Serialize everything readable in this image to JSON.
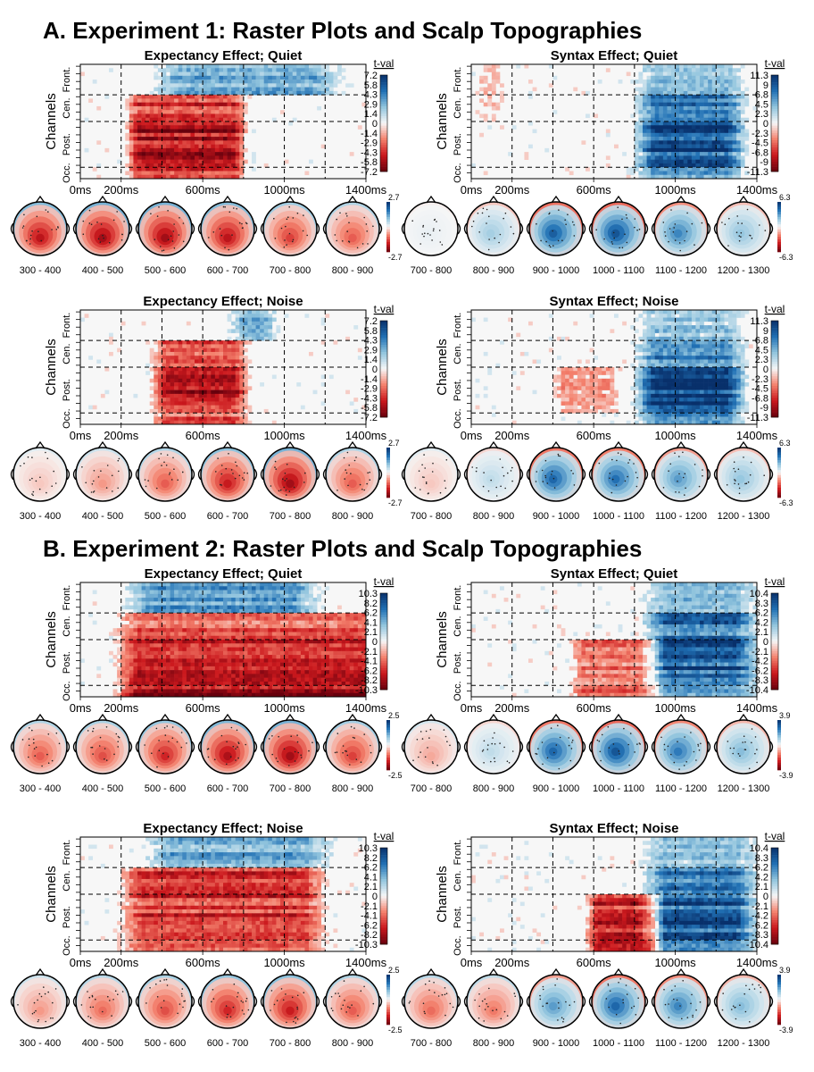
{
  "figure": {
    "sections": [
      {
        "title": "A. Experiment 1: Raster Plots and Scalp Topographies"
      },
      {
        "title": "B. Experiment 2: Raster Plots and Scalp Topographies"
      }
    ],
    "y_axis_label": "Channels",
    "channel_groups": [
      "Front.",
      "Cen.",
      "Post.",
      "Occ."
    ],
    "x_tick_labels": [
      "0ms",
      "200ms",
      "600ms",
      "1000ms",
      "1400ms"
    ],
    "colorbar_title": "t-val"
  },
  "chart_data": [
    {
      "type": "heatmap",
      "experiment": 1,
      "title": "Expectancy Effect; Quiet",
      "xlabel": "",
      "ylabel": "Channels",
      "xlim_ms": [
        0,
        1400
      ],
      "x_ticks_ms": [
        0,
        200,
        600,
        1000,
        1400
      ],
      "colorbar_ticks": [
        "7.2",
        "5.8",
        "4.3",
        "2.9",
        "1.4",
        "0",
        "-1.4",
        "-2.9",
        "-4.3",
        "-5.8",
        "-7.2"
      ],
      "topographies": {
        "windows": [
          "300 - 400",
          "400 - 500",
          "500 - 600",
          "600 - 700",
          "700 - 800",
          "800 - 900"
        ],
        "colorbar_max": "2.7",
        "colorbar_min": "-2.7",
        "peak_t": [
          -0.8,
          -0.9,
          -0.9,
          -0.8,
          -0.6,
          -0.5
        ]
      }
    },
    {
      "type": "heatmap",
      "experiment": 1,
      "title": "Syntax Effect; Quiet",
      "xlabel": "",
      "ylabel": "Channels",
      "xlim_ms": [
        0,
        1400
      ],
      "x_ticks_ms": [
        0,
        200,
        600,
        1000,
        1400
      ],
      "colorbar_ticks": [
        "11.3",
        "9",
        "6.8",
        "4.5",
        "2.3",
        "0",
        "-2.3",
        "-4.5",
        "-6.8",
        "-9",
        "-11.3"
      ],
      "topographies": {
        "windows": [
          "700 - 800",
          "800 - 900",
          "900 - 1000",
          "1000 - 1100",
          "1100 - 1200",
          "1200 - 1300"
        ],
        "colorbar_max": "6.3",
        "colorbar_min": "-6.3",
        "peak_t": [
          0.05,
          0.3,
          0.85,
          0.9,
          0.65,
          0.35
        ]
      }
    },
    {
      "type": "heatmap",
      "experiment": 1,
      "title": "Expectancy Effect; Noise",
      "xlabel": "",
      "ylabel": "Channels",
      "xlim_ms": [
        0,
        1400
      ],
      "x_ticks_ms": [
        0,
        200,
        600,
        1000,
        1400
      ],
      "colorbar_ticks": [
        "7.2",
        "5.8",
        "4.3",
        "2.9",
        "1.4",
        "0",
        "-1.4",
        "-2.9",
        "-4.3",
        "-5.8",
        "-7.2"
      ],
      "topographies": {
        "windows": [
          "300 - 400",
          "400 - 500",
          "500 - 600",
          "600 - 700",
          "700 - 800",
          "800 - 900"
        ],
        "colorbar_max": "2.7",
        "colorbar_min": "-2.7",
        "peak_t": [
          -0.15,
          -0.3,
          -0.5,
          -0.75,
          -0.9,
          -0.5
        ]
      }
    },
    {
      "type": "heatmap",
      "experiment": 1,
      "title": "Syntax Effect; Noise",
      "xlabel": "",
      "ylabel": "Channels",
      "xlim_ms": [
        0,
        1400
      ],
      "x_ticks_ms": [
        0,
        200,
        600,
        1000,
        1400
      ],
      "colorbar_ticks": [
        "11.3",
        "9",
        "6.8",
        "4.5",
        "2.3",
        "0",
        "-2.3",
        "-4.5",
        "-6.8",
        "-9",
        "-11.3"
      ],
      "topographies": {
        "windows": [
          "700 - 800",
          "800 - 900",
          "900 - 1000",
          "1000 - 1100",
          "1100 - 1200",
          "1200 - 1300"
        ],
        "colorbar_max": "6.3",
        "colorbar_min": "-6.3",
        "peak_t": [
          -0.15,
          0.2,
          0.8,
          0.75,
          0.55,
          0.35
        ]
      }
    },
    {
      "type": "heatmap",
      "experiment": 2,
      "title": "Expectancy Effect; Quiet",
      "xlabel": "",
      "ylabel": "Channels",
      "xlim_ms": [
        0,
        1400
      ],
      "x_ticks_ms": [
        0,
        200,
        600,
        1000,
        1400
      ],
      "colorbar_ticks": [
        "10.3",
        "8.2",
        "6.2",
        "4.1",
        "2.1",
        "0",
        "-2.1",
        "-4.1",
        "-6.2",
        "-8.2",
        "-10.3"
      ],
      "topographies": {
        "windows": [
          "300 - 400",
          "400 - 500",
          "500 - 600",
          "600 - 700",
          "700 - 800",
          "800 - 900"
        ],
        "colorbar_max": "2.5",
        "colorbar_min": "-2.5",
        "peak_t": [
          -0.5,
          -0.55,
          -0.7,
          -0.85,
          -0.9,
          -0.6
        ]
      }
    },
    {
      "type": "heatmap",
      "experiment": 2,
      "title": "Syntax Effect; Quiet",
      "xlabel": "",
      "ylabel": "Channels",
      "xlim_ms": [
        0,
        1400
      ],
      "x_ticks_ms": [
        0,
        200,
        600,
        1000,
        1400
      ],
      "colorbar_ticks": [
        "10.4",
        "8.3",
        "6.2",
        "4.2",
        "2.1",
        "0",
        "-2.1",
        "-4.2",
        "-6.2",
        "-8.3",
        "-10.4"
      ],
      "topographies": {
        "windows": [
          "700 - 800",
          "800 - 900",
          "900 - 1000",
          "1000 - 1100",
          "1100 - 1200",
          "1200 - 1300"
        ],
        "colorbar_max": "3.9",
        "colorbar_min": "-3.9",
        "peak_t": [
          -0.25,
          0.2,
          0.8,
          0.9,
          0.7,
          0.4
        ]
      }
    },
    {
      "type": "heatmap",
      "experiment": 2,
      "title": "Expectancy Effect; Noise",
      "xlabel": "",
      "ylabel": "Channels",
      "xlim_ms": [
        0,
        1400
      ],
      "x_ticks_ms": [
        0,
        200,
        600,
        1000,
        1400
      ],
      "colorbar_ticks": [
        "10.3",
        "8.2",
        "6.2",
        "4.1",
        "2.1",
        "0",
        "-2.1",
        "-4.1",
        "-6.2",
        "-8.2",
        "-10.3"
      ],
      "topographies": {
        "windows": [
          "300 - 400",
          "400 - 500",
          "500 - 600",
          "600 - 700",
          "700 - 800",
          "800 - 900"
        ],
        "colorbar_max": "2.5",
        "colorbar_min": "-2.5",
        "peak_t": [
          -0.3,
          -0.45,
          -0.55,
          -0.7,
          -0.75,
          -0.5
        ]
      }
    },
    {
      "type": "heatmap",
      "experiment": 2,
      "title": "Syntax Effect; Noise",
      "xlabel": "",
      "ylabel": "Channels",
      "xlim_ms": [
        0,
        1400
      ],
      "x_ticks_ms": [
        0,
        200,
        600,
        1000,
        1400
      ],
      "colorbar_ticks": [
        "10.4",
        "8.3",
        "6.2",
        "4.2",
        "2.1",
        "0",
        "-2.1",
        "-4.2",
        "-6.2",
        "-8.3",
        "-10.4"
      ],
      "topographies": {
        "windows": [
          "700 - 800",
          "800 - 900",
          "900 - 1000",
          "1000 - 1100",
          "1100 - 1200",
          "1200 - 1300"
        ],
        "colorbar_max": "3.9",
        "colorbar_min": "-3.9",
        "peak_t": [
          -0.45,
          -0.4,
          0.55,
          0.8,
          0.65,
          0.4
        ]
      }
    }
  ],
  "colors": {
    "positive_max": "#08306b",
    "positive_mid": "#4a90c8",
    "neutral": "#f5f5f5",
    "negative_mid": "#e8664c",
    "negative_max": "#6b000d",
    "axis": "#000000",
    "dashed_line": "#000000",
    "panel_background": "#f7f7f7"
  }
}
